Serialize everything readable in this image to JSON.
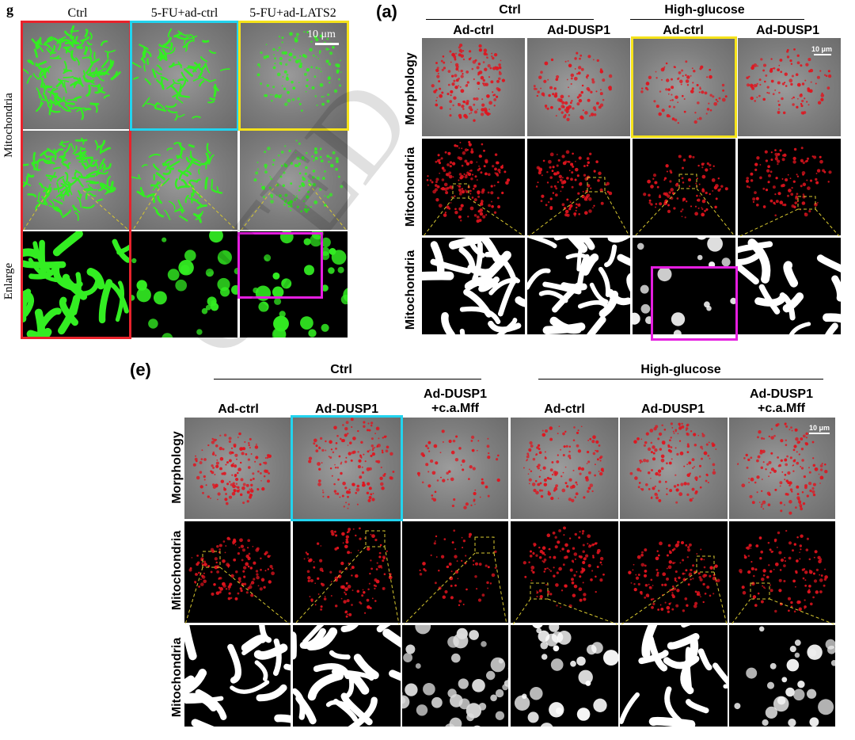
{
  "panel_g": {
    "letter": "g",
    "columns": [
      "Ctrl",
      "5-FU+ad-ctrl",
      "5-FU+ad-LATS2"
    ],
    "row_labels": {
      "mitochondria": "Mitochondria",
      "enlarge": "Enlarge"
    },
    "scale_bar": "10 μm"
  },
  "panel_a": {
    "letter": "(a)",
    "groups": [
      "Ctrl",
      "High-glucose"
    ],
    "columns": [
      "Ad-ctrl",
      "Ad-DUSP1",
      "Ad-ctrl",
      "Ad-DUSP1"
    ],
    "row_labels": [
      "Morphology",
      "Mitochondria",
      "Mitochondria"
    ],
    "scale_bar": "10 μm"
  },
  "panel_e": {
    "letter": "(e)",
    "groups": [
      "Ctrl",
      "High-glucose"
    ],
    "columns": [
      {
        "line1": "Ad-ctrl",
        "line2": ""
      },
      {
        "line1": "Ad-DUSP1",
        "line2": ""
      },
      {
        "line1": "Ad-DUSP1",
        "line2": "+c.a.Mff"
      },
      {
        "line1": "Ad-ctrl",
        "line2": ""
      },
      {
        "line1": "Ad-DUSP1",
        "line2": ""
      },
      {
        "line1": "Ad-DUSP1",
        "line2": "+c.a.Mff"
      }
    ],
    "row_labels": [
      "Morphology",
      "Mitochondria",
      "Mitochondria"
    ],
    "scale_bar": "10 μm"
  },
  "highlight_colors": {
    "red": "#e8222b",
    "cyan": "#22d3ee",
    "yellow": "#f5e21a",
    "magenta": "#e51ee0"
  },
  "fluorescence_colors": {
    "green": "#33ee22",
    "red": "#e0141e",
    "white": "#ffffff"
  }
}
